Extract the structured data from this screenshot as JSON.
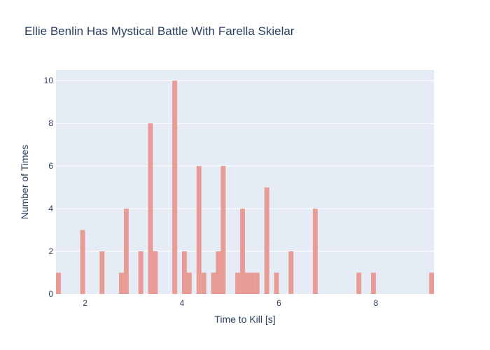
{
  "chart_data": {
    "type": "bar",
    "title": "Ellie Benlin Has Mystical Battle With Farella Skielar",
    "xlabel": "Time to Kill [s]",
    "ylabel": "Number of Times",
    "xlim": [
      1.4,
      9.2
    ],
    "ylim": [
      0,
      10.5
    ],
    "bin_width": 0.1,
    "x_ticks": [
      2,
      4,
      6,
      8
    ],
    "y_ticks": [
      0,
      2,
      4,
      6,
      8,
      10
    ],
    "grid": true,
    "legend": "none",
    "bar_color": "#e8988f",
    "plot_bg": "#e5ecf6",
    "x": [
      1.45,
      1.95,
      2.35,
      2.75,
      2.85,
      3.15,
      3.35,
      3.45,
      3.85,
      4.05,
      4.15,
      4.35,
      4.45,
      4.65,
      4.75,
      4.85,
      5.15,
      5.25,
      5.35,
      5.45,
      5.55,
      5.75,
      5.95,
      6.25,
      6.75,
      7.65,
      7.95,
      9.15
    ],
    "values": [
      1,
      3,
      2,
      1,
      4,
      2,
      8,
      2,
      10,
      2,
      1,
      6,
      1,
      1,
      2,
      6,
      1,
      4,
      1,
      1,
      1,
      5,
      1,
      2,
      4,
      1,
      1,
      1
    ]
  }
}
